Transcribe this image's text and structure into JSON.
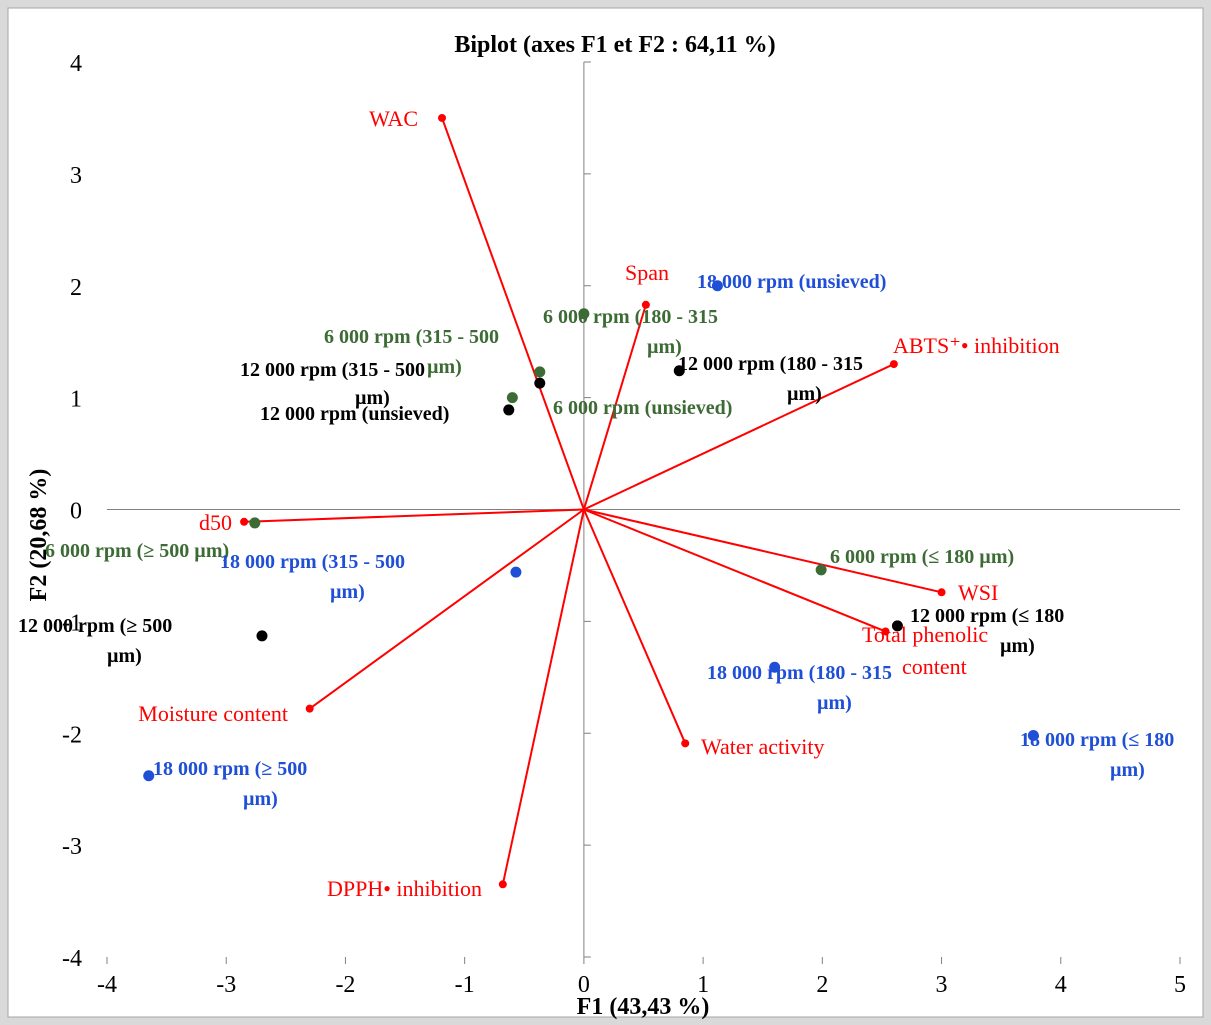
{
  "chart_data": {
    "type": "scatter",
    "title": "Biplot (axes F1 et F2 : 64,11 %)",
    "xlabel": "F1 (43,43 %)",
    "ylabel": "F2 (20,68 %)",
    "xlim": [
      -4,
      5
    ],
    "ylim": [
      -4,
      4
    ],
    "xticks": [
      "-4",
      "-3",
      "-2",
      "-1",
      "0",
      "1",
      "2",
      "3",
      "4",
      "5"
    ],
    "yticks": [
      "-4",
      "-3",
      "-2",
      "-1",
      "0",
      "1",
      "2",
      "3",
      "4"
    ],
    "grid": false,
    "legend": "none",
    "colors": {
      "variables": "#ff0000",
      "6000rpm": "#3d6b35",
      "12000rpm": "#000000",
      "18000rpm": "#1f4fd6",
      "axes": "#808080"
    },
    "variables": [
      {
        "label": "WAC",
        "x": -1.19,
        "y": 3.5
      },
      {
        "label": "Span",
        "x": 0.52,
        "y": 1.83
      },
      {
        "label": "ABTS⁺• inhibition",
        "x": 2.6,
        "y": 1.3
      },
      {
        "label": "d50",
        "x": -2.85,
        "y": -0.11
      },
      {
        "label": "WSI",
        "x": 3.0,
        "y": -0.74
      },
      {
        "label": "Total phenolic content",
        "x": 2.53,
        "y": -1.09
      },
      {
        "label": "Moisture content",
        "x": -2.3,
        "y": -1.78
      },
      {
        "label": "Water activity",
        "x": 0.85,
        "y": -2.09
      },
      {
        "label": "DPPH• inhibition",
        "x": -0.68,
        "y": -3.35
      }
    ],
    "observations": [
      {
        "label": "18 000 rpm (unsieved)",
        "group": "18000rpm",
        "x": 1.12,
        "y": 2.0
      },
      {
        "label": "6 000 rpm (180 - 315 µm)",
        "group": "6000rpm",
        "x": 0.0,
        "y": 1.75
      },
      {
        "label": "6 000 rpm (315 - 500 µm)",
        "group": "6000rpm",
        "x": -0.37,
        "y": 1.23
      },
      {
        "label": "12 000 rpm (315 - 500 µm)",
        "group": "12000rpm",
        "x": -0.37,
        "y": 1.13
      },
      {
        "label": "12 000 rpm (180 - 315 µm)",
        "group": "12000rpm",
        "x": 0.8,
        "y": 1.24
      },
      {
        "label": "6 000 rpm (unsieved)",
        "group": "6000rpm",
        "x": -0.6,
        "y": 1.0
      },
      {
        "label": "12 000 rpm (unsieved)",
        "group": "12000rpm",
        "x": -0.63,
        "y": 0.89
      },
      {
        "label": "6 000 rpm (≥ 500 µm)",
        "group": "6000rpm",
        "x": -2.76,
        "y": -0.12
      },
      {
        "label": "6 000 rpm (≤ 180 µm)",
        "group": "6000rpm",
        "x": 1.99,
        "y": -0.54
      },
      {
        "label": "18 000 rpm (315 - 500 µm)",
        "group": "18000rpm",
        "x": -0.57,
        "y": -0.56
      },
      {
        "label": "12 000 rpm (≥ 500 µm)",
        "group": "12000rpm",
        "x": -2.7,
        "y": -1.13
      },
      {
        "label": "12 000 rpm (≤ 180 µm)",
        "group": "12000rpm",
        "x": 2.63,
        "y": -1.04
      },
      {
        "label": "18 000 rpm (180 - 315 µm)",
        "group": "18000rpm",
        "x": 1.6,
        "y": -1.41
      },
      {
        "label": "18 000 rpm (≤ 180 µm)",
        "group": "18000rpm",
        "x": 3.77,
        "y": -2.02
      },
      {
        "label": "18 000 rpm (≥ 500 µm)",
        "group": "18000rpm",
        "x": -3.65,
        "y": -2.38
      }
    ]
  }
}
